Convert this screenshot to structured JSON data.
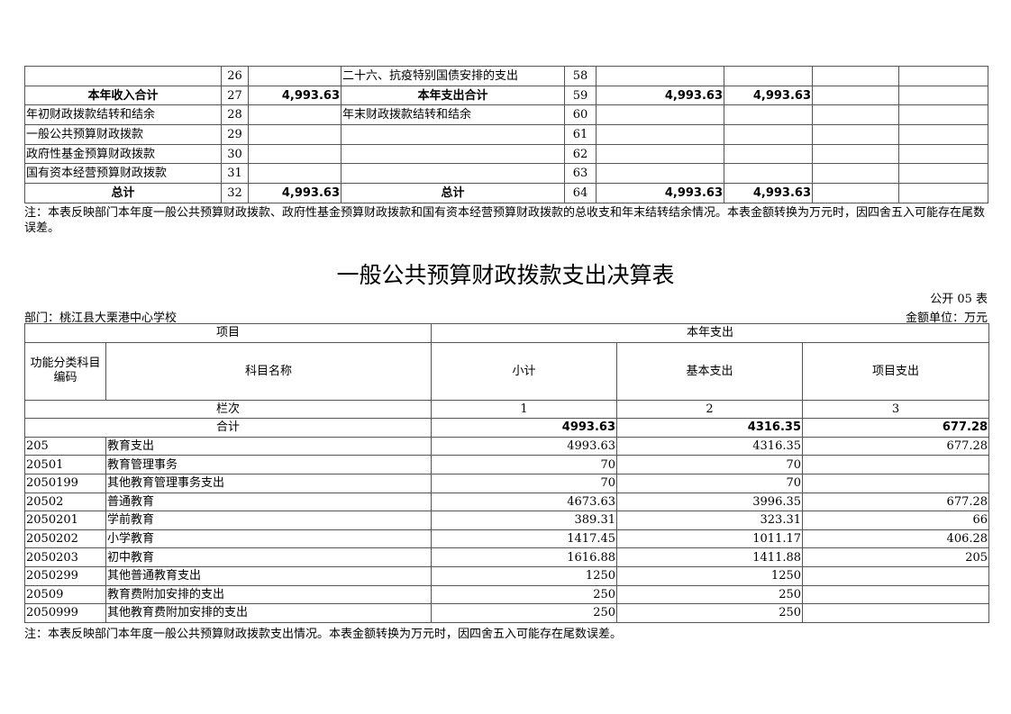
{
  "summary_table": {
    "rows": [
      {
        "income_label": "",
        "income_no": "26",
        "income_amount": "",
        "expense_label": "二十六、抗疫特别国债安排的支出",
        "expense_no": "58",
        "c1": "",
        "c2": "",
        "c3": "",
        "c4": "",
        "bold": false
      },
      {
        "income_label": "本年收入合计",
        "income_no": "27",
        "income_amount": "4,993.63",
        "expense_label": "本年支出合计",
        "expense_no": "59",
        "c1": "4,993.63",
        "c2": "4,993.63",
        "c3": "",
        "c4": "",
        "bold": true
      },
      {
        "income_label": "年初财政拨款结转和结余",
        "income_no": "28",
        "income_amount": "",
        "expense_label": "年末财政拨款结转和结余",
        "expense_no": "60",
        "c1": "",
        "c2": "",
        "c3": "",
        "c4": "",
        "bold": false
      },
      {
        "income_label": "一般公共预算财政拨款",
        "income_no": "29",
        "income_amount": "",
        "expense_label": "",
        "expense_no": "61",
        "c1": "",
        "c2": "",
        "c3": "",
        "c4": "",
        "bold": false
      },
      {
        "income_label": "政府性基金预算财政拨款",
        "income_no": "30",
        "income_amount": "",
        "expense_label": "",
        "expense_no": "62",
        "c1": "",
        "c2": "",
        "c3": "",
        "c4": "",
        "bold": false
      },
      {
        "income_label": "国有资本经营预算财政拨款",
        "income_no": "31",
        "income_amount": "",
        "expense_label": "",
        "expense_no": "63",
        "c1": "",
        "c2": "",
        "c3": "",
        "c4": "",
        "bold": false
      },
      {
        "income_label": "总计",
        "income_no": "32",
        "income_amount": "4,993.63",
        "expense_label": "总计",
        "expense_no": "64",
        "c1": "4,993.63",
        "c2": "4,993.63",
        "c3": "",
        "c4": "",
        "bold": true
      }
    ],
    "note": "注：本表反映部门本年度一般公共预算财政拨款、政府性基金预算财政拨款和国有资本经营预算财政拨款的总收支和年末结转结余情况。本表金额转换为万元时，因四舍五入可能存在尾数误差。"
  },
  "expense_table": {
    "title": "一般公共预算财政拨款支出决算表",
    "form_no": "公开 05 表",
    "department": "部门：桃江县大栗港中心学校",
    "unit": "金额单位：万元",
    "headers": {
      "item": "项目",
      "current_expense": "本年支出",
      "code": "功能分类科目编码",
      "name": "科目名称",
      "subtotal": "小计",
      "basic": "基本支出",
      "project": "项目支出",
      "column_label": "栏次",
      "col1": "1",
      "col2": "2",
      "col3": "3",
      "total_label": "合计",
      "total_subtotal": "4993.63",
      "total_basic": "4316.35",
      "total_project": "677.28"
    },
    "rows": [
      {
        "code": "205",
        "name": "教育支出",
        "subtotal": "4993.63",
        "basic": "4316.35",
        "project": "677.28"
      },
      {
        "code": "20501",
        "name": "教育管理事务",
        "subtotal": "70",
        "basic": "70",
        "project": ""
      },
      {
        "code": "2050199",
        "name": "其他教育管理事务支出",
        "subtotal": "70",
        "basic": "70",
        "project": ""
      },
      {
        "code": "20502",
        "name": "普通教育",
        "subtotal": "4673.63",
        "basic": "3996.35",
        "project": "677.28"
      },
      {
        "code": "2050201",
        "name": "学前教育",
        "subtotal": "389.31",
        "basic": "323.31",
        "project": "66"
      },
      {
        "code": "2050202",
        "name": "小学教育",
        "subtotal": "1417.45",
        "basic": "1011.17",
        "project": "406.28"
      },
      {
        "code": "2050203",
        "name": "初中教育",
        "subtotal": "1616.88",
        "basic": "1411.88",
        "project": "205"
      },
      {
        "code": "2050299",
        "name": "其他普通教育支出",
        "subtotal": "1250",
        "basic": "1250",
        "project": ""
      },
      {
        "code": "20509",
        "name": "教育费附加安排的支出",
        "subtotal": "250",
        "basic": "250",
        "project": ""
      },
      {
        "code": "2050999",
        "name": "其他教育费附加安排的支出",
        "subtotal": "250",
        "basic": "250",
        "project": ""
      }
    ],
    "note": "注：本表反映部门本年度一般公共预算财政拨款支出情况。本表金额转换为万元时，因四舍五入可能存在尾数误差。"
  }
}
